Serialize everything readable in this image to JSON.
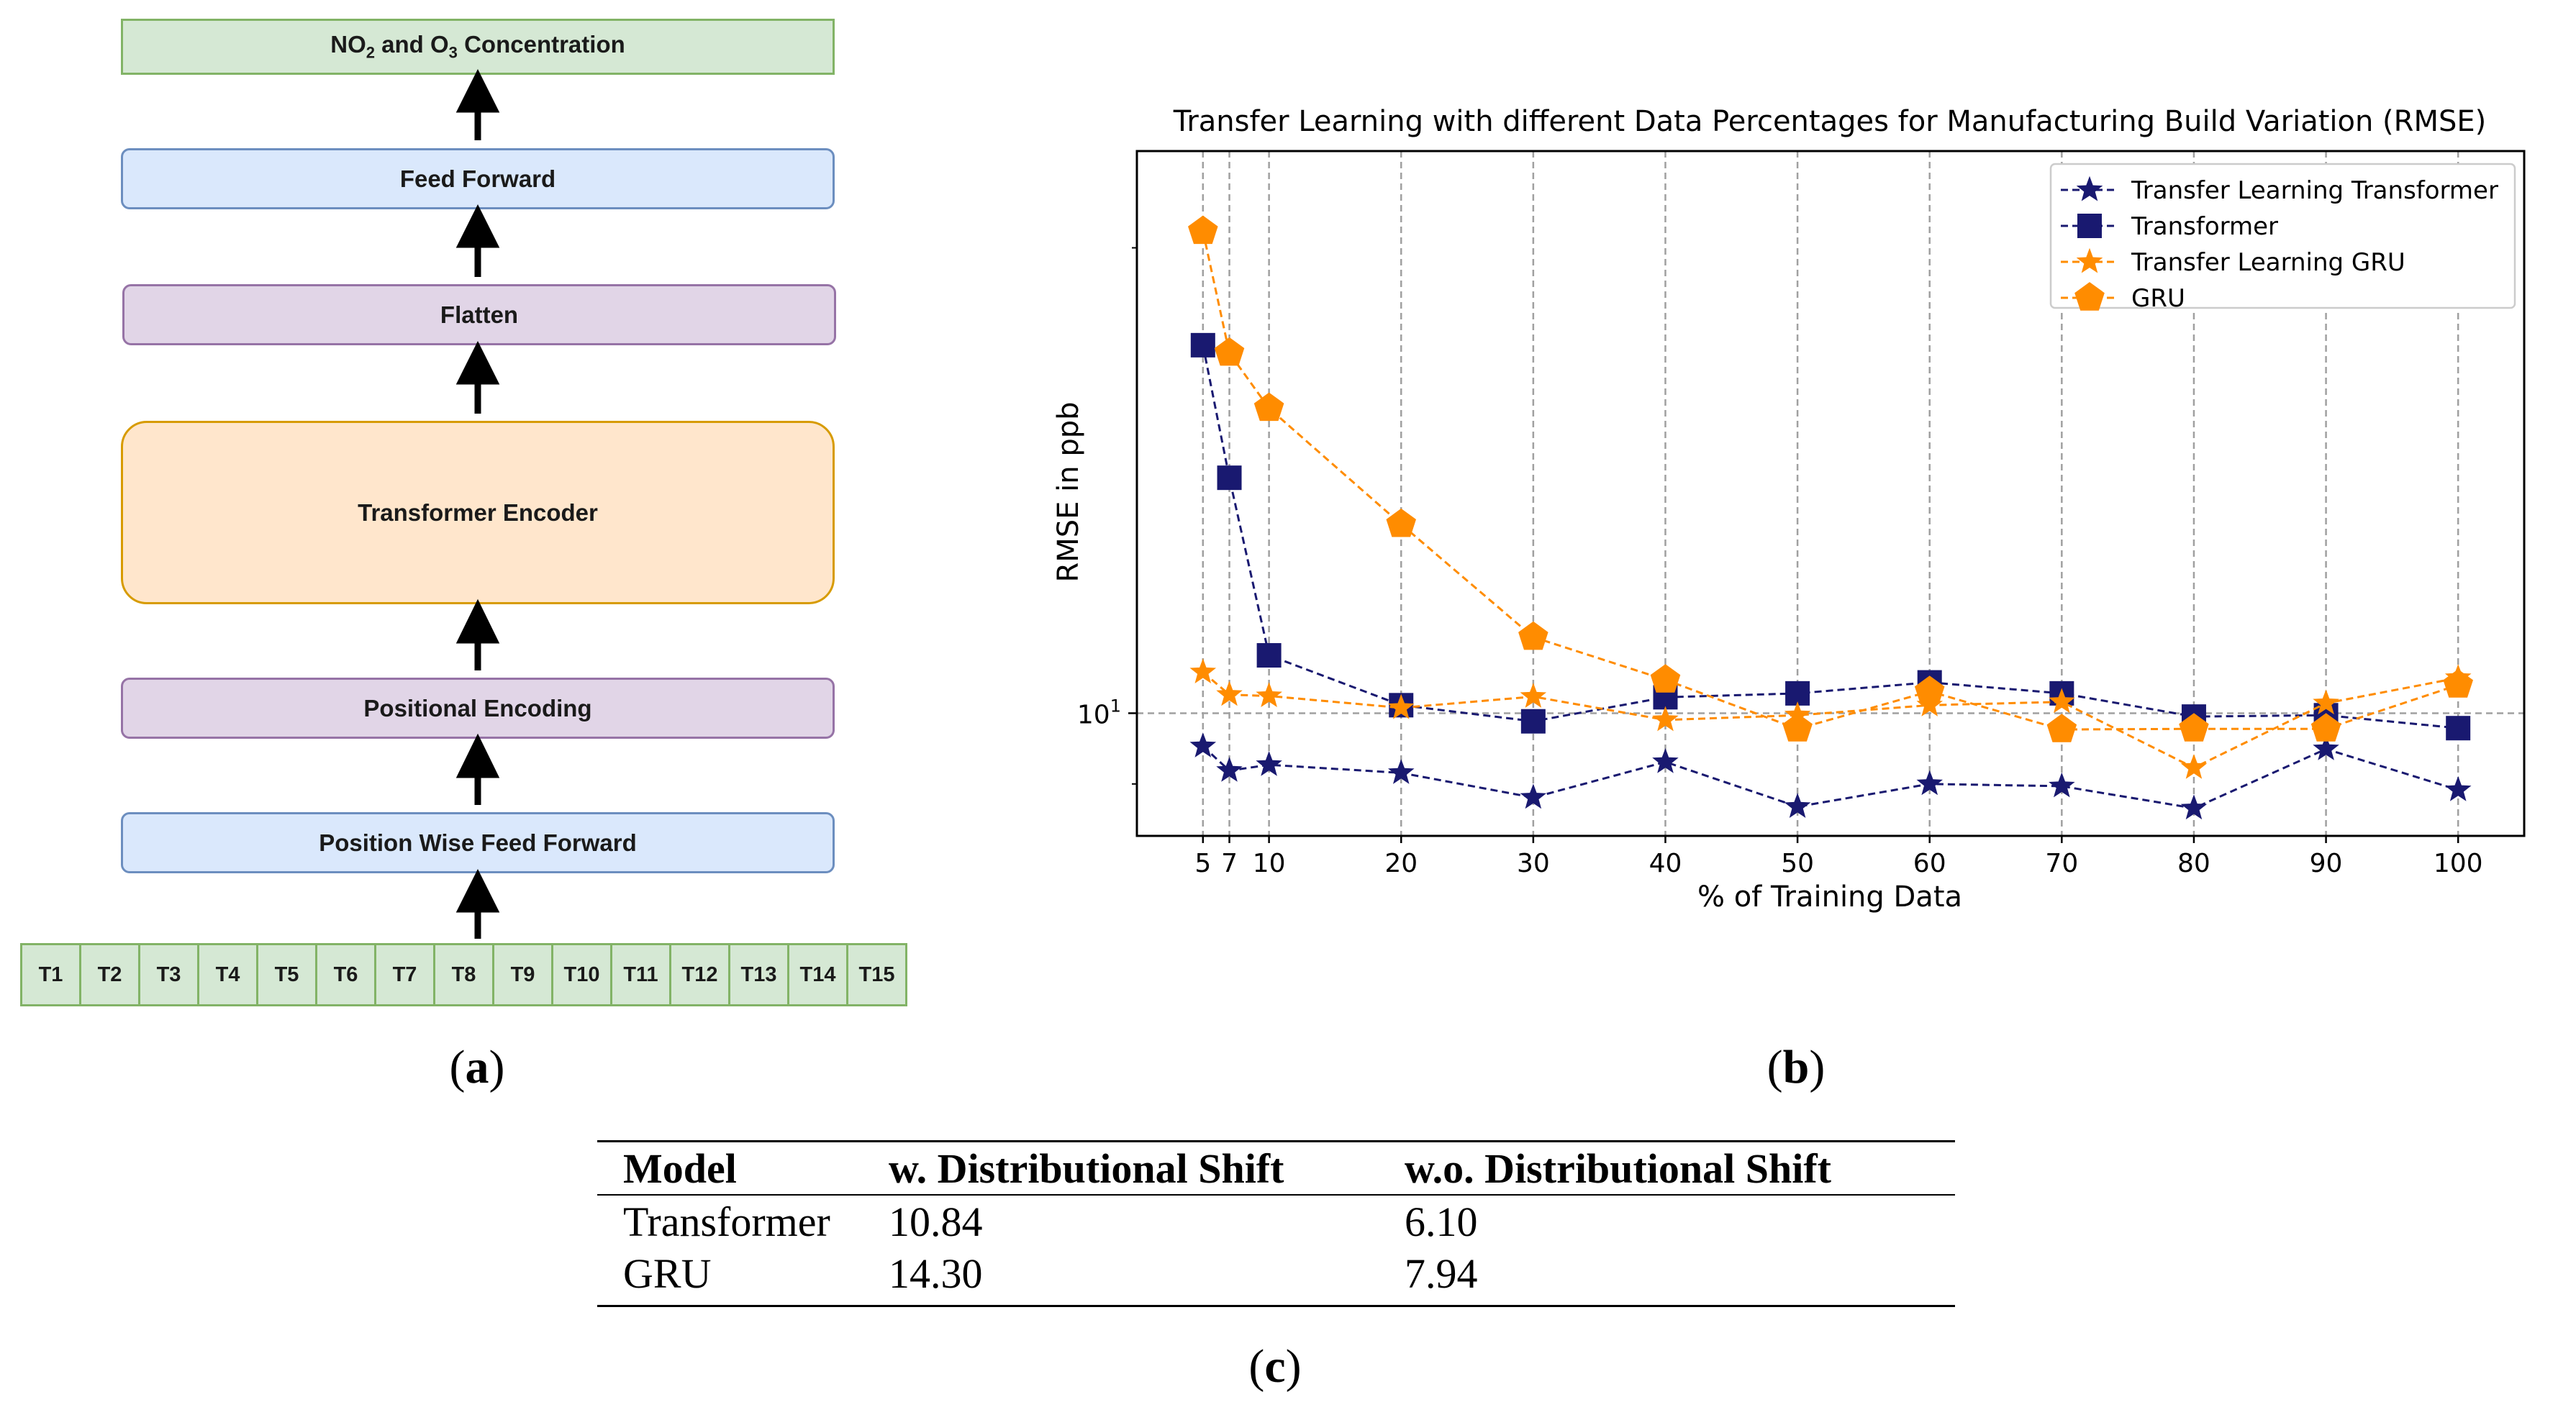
{
  "diagram": {
    "boxes": {
      "output": {
        "main": "NO",
        "sub1": "2",
        "mid": " and O",
        "sub2": "3",
        "tail": " Concentration"
      },
      "feed_forward": "Feed Forward",
      "flatten": "Flatten",
      "encoder": "Transformer Encoder",
      "positional_encoding": "Positional Encoding",
      "pwff": "Position Wise Feed Forward"
    },
    "tokens": [
      "T1",
      "T2",
      "T3",
      "T4",
      "T5",
      "T6",
      "T7",
      "T8",
      "T9",
      "T10",
      "T11",
      "T12",
      "T13",
      "T14",
      "T15"
    ],
    "colors": {
      "green": "#d5e8d4",
      "blue": "#dae8fc",
      "purple": "#e1d5e7",
      "orange": "#ffe6cc"
    }
  },
  "labels": {
    "a": "a",
    "b": "b",
    "c": "c"
  },
  "chart_data": {
    "type": "line",
    "title": "Transfer Learning with different Data Percentages for Manufacturing Build Variation (RMSE)",
    "xlabel": "% of Training Data",
    "ylabel": "RMSE in ppb",
    "yscale": "log",
    "ytick_label": "10",
    "ytick_exp": "1",
    "x": [
      5,
      7,
      10,
      20,
      30,
      40,
      50,
      60,
      70,
      80,
      90,
      100
    ],
    "xlim": [
      0,
      105
    ],
    "ylim": [
      8.33,
      23.1
    ],
    "grid": "vertical dashed at x ticks, horizontal dashed at y = 10",
    "legend_position": "top-right",
    "series": [
      {
        "name": "Transfer Learning Transformer",
        "color": "#191970",
        "marker": "star",
        "values": [
          9.52,
          9.18,
          9.26,
          9.15,
          8.82,
          9.3,
          8.7,
          9.0,
          8.97,
          8.68,
          9.48,
          8.92
        ]
      },
      {
        "name": "Transformer",
        "color": "#191970",
        "marker": "square",
        "values": [
          17.3,
          14.2,
          10.9,
          10.12,
          9.88,
          10.24,
          10.3,
          10.47,
          10.3,
          9.95,
          9.97,
          9.78
        ]
      },
      {
        "name": "Transfer Learning GRU",
        "color": "#ff8c00",
        "marker": "star",
        "values": [
          10.63,
          10.28,
          10.26,
          10.08,
          10.25,
          9.9,
          9.97,
          10.12,
          10.17,
          9.22,
          10.15,
          10.54
        ]
      },
      {
        "name": "GRU",
        "color": "#ff8c00",
        "marker": "pentagon",
        "values": [
          20.5,
          17.1,
          15.75,
          13.25,
          11.2,
          10.51,
          9.77,
          10.33,
          9.76,
          9.77,
          9.77,
          10.43
        ]
      }
    ]
  },
  "table": {
    "headers": [
      "Model",
      "w. Distributional Shift",
      "w.o. Distributional Shift"
    ],
    "rows": [
      [
        "Transformer",
        "10.84",
        "6.10"
      ],
      [
        "GRU",
        "14.30",
        "7.94"
      ]
    ]
  }
}
